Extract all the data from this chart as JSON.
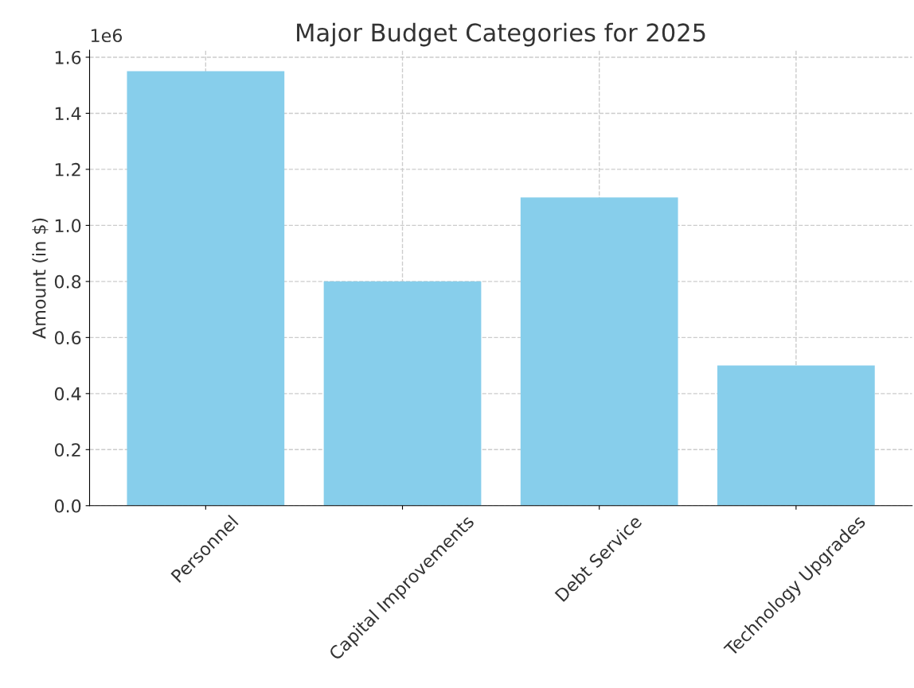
{
  "chart_data": {
    "type": "bar",
    "title": "Major Budget Categories for 2025",
    "ylabel": "Amount (in $)",
    "categories": [
      "Personnel",
      "Capital Improvements",
      "Debt Service",
      "Technology Upgrades"
    ],
    "values": [
      1.55,
      0.8,
      1.1,
      0.5
    ],
    "color": "#87ceeb",
    "ylim": [
      0,
      1.625
    ],
    "yticks": [
      {
        "value": 0,
        "label": "0.0"
      },
      0.2,
      0.4,
      0.6,
      0.8,
      {
        "value": 1,
        "label": "1.0"
      },
      1.2,
      1.4,
      1.6
    ],
    "annotations": [
      "1e6"
    ],
    "grid": true,
    "legend": false
  }
}
